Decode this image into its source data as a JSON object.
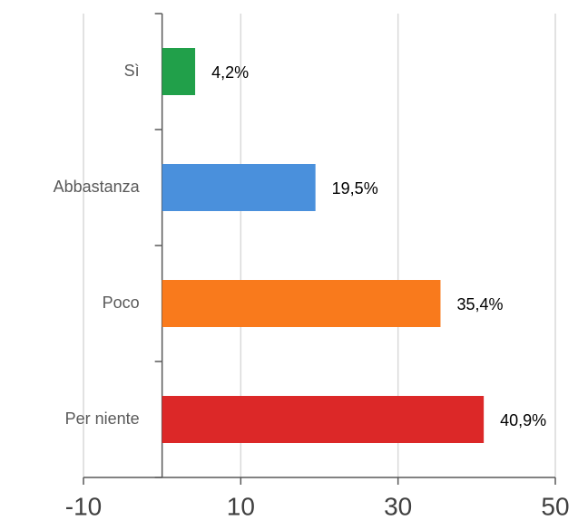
{
  "chart_data": {
    "type": "hbar",
    "categories": [
      "Sì",
      "Abbastanza",
      "Poco",
      "Per niente"
    ],
    "values": [
      4.2,
      19.5,
      35.4,
      40.9
    ],
    "value_labels": [
      "4,2%",
      "19,5%",
      "35,4%",
      "40,9%"
    ],
    "colors": [
      "#21a04a",
      "#4a90dc",
      "#f97a1c",
      "#dc2828"
    ],
    "xlim": [
      -10,
      50
    ],
    "xticks": [
      -10,
      10,
      30,
      50
    ],
    "grid": true
  }
}
